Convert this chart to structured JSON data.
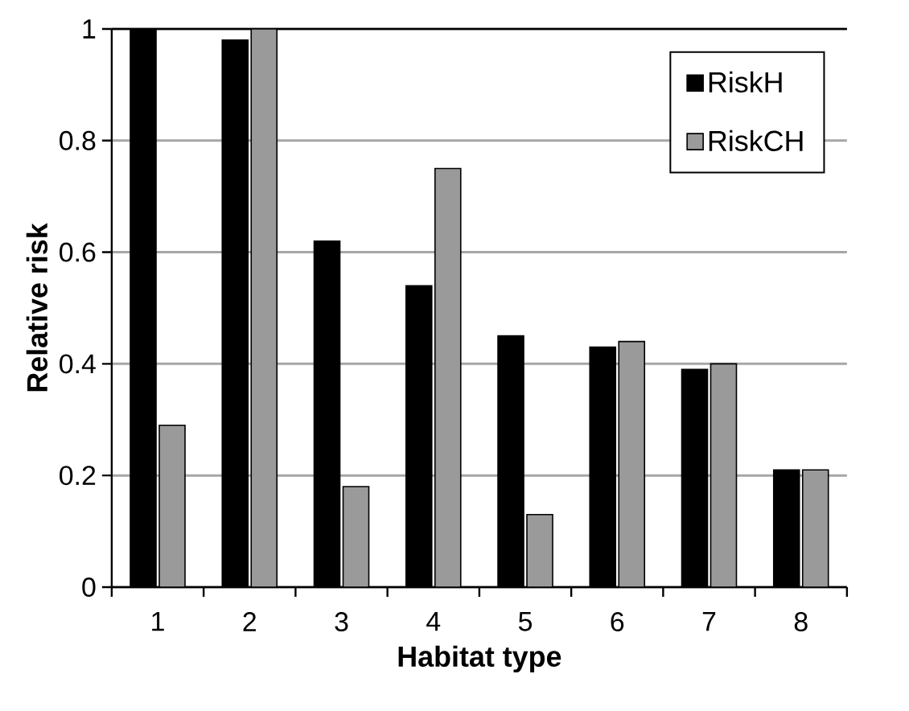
{
  "chart_data": {
    "type": "bar",
    "xlabel": "Habitat type",
    "ylabel": "Relative risk",
    "categories": [
      "1",
      "2",
      "3",
      "4",
      "5",
      "6",
      "7",
      "8"
    ],
    "series": [
      {
        "name": "RiskH",
        "color": "#000000",
        "values": [
          1.0,
          0.98,
          0.62,
          0.54,
          0.45,
          0.43,
          0.39,
          0.21
        ]
      },
      {
        "name": "RiskCH",
        "color": "#9a9a9a",
        "values": [
          0.29,
          1.0,
          0.18,
          0.75,
          0.13,
          0.44,
          0.4,
          0.21
        ]
      }
    ],
    "ylim": [
      0,
      1
    ],
    "yticks": [
      0,
      0.2,
      0.4,
      0.6,
      0.8,
      1
    ],
    "grid": "y",
    "legend": "top right"
  }
}
